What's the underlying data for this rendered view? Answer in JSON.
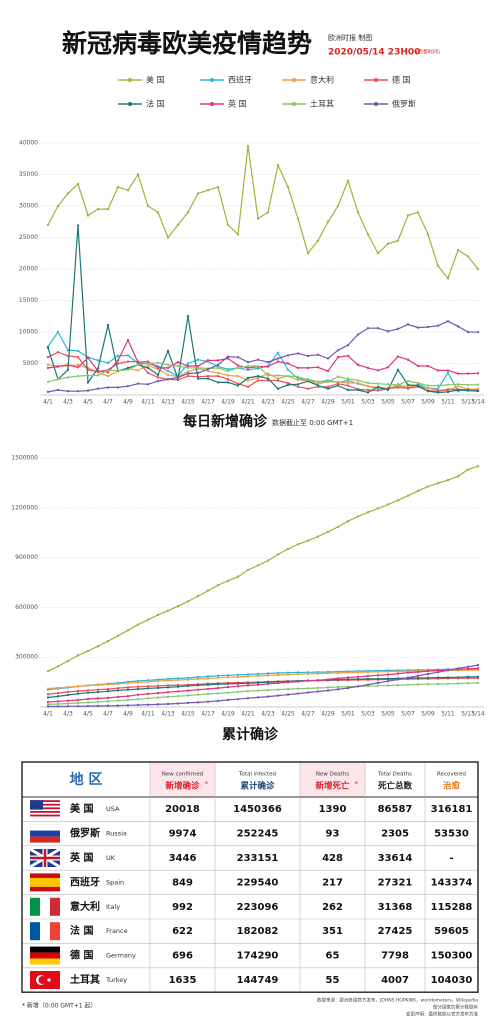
{
  "header": {
    "title": "新冠病毒欧美疫情趋势",
    "publisher": "欧洲时报 制图",
    "date": "2020/05/14 23H00",
    "timezone": "(巴黎时间)"
  },
  "chart_data": [
    {
      "type": "line",
      "title": "每日新增确诊",
      "subtitle": "数据截止至 0:00 GMT+1",
      "grid": true,
      "categories": [
        "4/1",
        null,
        "4/3",
        null,
        "4/5",
        null,
        "4/7",
        null,
        "4/9",
        null,
        "4/11",
        null,
        "4/13",
        null,
        "4/15",
        null,
        "4/17",
        null,
        "4/19",
        null,
        "4/21",
        null,
        "4/23",
        null,
        "4/25",
        null,
        "4/27",
        null,
        "4/29",
        null,
        "5/01",
        null,
        "5/03",
        null,
        "5/05",
        null,
        "5/07",
        null,
        "5/09",
        null,
        "5/11",
        null,
        "5/13",
        "5/14"
      ],
      "ylim": [
        0,
        40000
      ],
      "yticks": [
        5000,
        10000,
        15000,
        20000,
        25000,
        30000,
        35000,
        40000
      ],
      "series": [
        {
          "name": "美 国",
          "color": "#9db53a",
          "values": [
            27000,
            30000,
            32000,
            33500,
            28500,
            29500,
            29500,
            33000,
            32500,
            35000,
            30000,
            29000,
            25000,
            27000,
            29000,
            32000,
            32500,
            33000,
            27000,
            25500,
            39500,
            28000,
            29000,
            36500,
            33000,
            28000,
            22500,
            24500,
            27500,
            30000,
            34000,
            29000,
            25500,
            22500,
            24000,
            24500,
            28500,
            29000,
            25500,
            20500,
            18500,
            23000,
            22000,
            20018
          ]
        },
        {
          "name": "西班牙",
          "color": "#2bb6d8",
          "values": [
            7700,
            10000,
            7100,
            7000,
            6000,
            5500,
            5100,
            6200,
            6300,
            5000,
            5000,
            4600,
            3800,
            3000,
            5000,
            5600,
            5300,
            4500,
            4100,
            4300,
            4000,
            4200,
            4600,
            6700,
            4000,
            2600,
            2500,
            2100,
            2300,
            2000,
            2300,
            1800,
            1400,
            1000,
            900,
            1700,
            1000,
            1700,
            1100,
            1000,
            3500,
            600,
            1000,
            849
          ]
        },
        {
          "name": "意大利",
          "color": "#f0a043",
          "values": [
            4800,
            4600,
            4600,
            4800,
            4300,
            3600,
            3000,
            3800,
            4200,
            3900,
            4700,
            4100,
            3200,
            2900,
            3700,
            4200,
            3800,
            3500,
            3100,
            3000,
            2300,
            2700,
            3400,
            2600,
            3000,
            2400,
            2300,
            1800,
            2100,
            2100,
            1900,
            1900,
            1400,
            1200,
            1100,
            1400,
            1400,
            1300,
            1100,
            800,
            700,
            1400,
            900,
            992
          ]
        },
        {
          "name": "德 国",
          "color": "#e8505a",
          "values": [
            6000,
            6800,
            6200,
            6000,
            4000,
            3700,
            4000,
            5000,
            5300,
            5300,
            3500,
            2800,
            2500,
            2400,
            3000,
            2900,
            3000,
            3000,
            2500,
            1800,
            1300,
            2300,
            2300,
            2300,
            1900,
            1300,
            1000,
            1300,
            1300,
            1800,
            1500,
            900,
            800,
            700,
            1000,
            1200,
            1100,
            1300,
            700,
            600,
            900,
            900,
            800,
            696
          ]
        },
        {
          "name": "法 国",
          "color": "#1d7777",
          "values": [
            7500,
            2500,
            4000,
            26900,
            2000,
            4200,
            11100,
            3800,
            4300,
            4800,
            4300,
            3200,
            7000,
            2600,
            12500,
            2600,
            2600,
            2000,
            2000,
            1500,
            2700,
            3000,
            2600,
            1000,
            1600,
            1700,
            2200,
            1500,
            1000,
            1500,
            800,
            800,
            400,
            1300,
            800,
            4000,
            1600,
            1500,
            600,
            400,
            500,
            800,
            700,
            622
          ]
        },
        {
          "name": "英 国",
          "color": "#e0357a",
          "values": [
            4300,
            4500,
            4800,
            4400,
            5900,
            3800,
            3600,
            5500,
            8700,
            5200,
            5300,
            4300,
            4300,
            5200,
            4600,
            4600,
            5500,
            5500,
            5800,
            4700,
            4300,
            4500,
            4500,
            5300,
            5000,
            4300,
            4300,
            4400,
            3800,
            6000,
            6200,
            4800,
            4300,
            3900,
            4400,
            6100,
            5600,
            4600,
            4600,
            3900,
            3900,
            3400,
            3400,
            3446
          ]
        },
        {
          "name": "土耳其",
          "color": "#86c96c",
          "values": [
            2100,
            2500,
            2800,
            3000,
            3100,
            3100,
            3900,
            3900,
            4000,
            4800,
            5000,
            5100,
            4800,
            4600,
            4300,
            4300,
            4200,
            4300,
            3800,
            4300,
            4600,
            4600,
            3100,
            3100,
            3000,
            2900,
            2400,
            2100,
            2100,
            2900,
            2600,
            2300,
            1900,
            1800,
            1700,
            1600,
            2200,
            1900,
            1500,
            1500,
            1600,
            1700,
            1600,
            1635
          ]
        },
        {
          "name": "俄罗斯",
          "color": "#7856b3",
          "values": [
            500,
            800,
            600,
            600,
            700,
            1000,
            1200,
            1200,
            1400,
            1800,
            1700,
            2200,
            2500,
            2800,
            3400,
            3500,
            4100,
            4800,
            6100,
            6000,
            5200,
            5600,
            5200,
            5800,
            6300,
            6600,
            6200,
            6400,
            5800,
            7100,
            7900,
            9600,
            10600,
            10600,
            10100,
            10500,
            11200,
            10700,
            10800,
            11000,
            11700,
            10900,
            10000,
            9974
          ]
        }
      ]
    },
    {
      "type": "line",
      "title": "累计确诊",
      "grid": true,
      "categories": [
        "4/1",
        null,
        "4/3",
        null,
        "4/5",
        null,
        "4/7",
        null,
        "4/9",
        null,
        "4/11",
        null,
        "4/13",
        null,
        "4/15",
        null,
        "4/17",
        null,
        "4/19",
        null,
        "4/21",
        null,
        "4/23",
        null,
        "4/25",
        null,
        "4/27",
        null,
        "4/29",
        null,
        "5/01",
        null,
        "5/03",
        null,
        "5/05",
        null,
        "5/07",
        null,
        "5/09",
        null,
        "5/11",
        null,
        "5/13",
        "5/14"
      ],
      "ylim": [
        0,
        1500000
      ],
      "yticks": [
        300000,
        600000,
        900000,
        1200000,
        1500000
      ],
      "series": [
        {
          "color": "#9db53a",
          "values": [
            215000,
            245000,
            277000,
            311000,
            337000,
            366000,
            397000,
            429000,
            462000,
            496000,
            526000,
            555000,
            580000,
            607000,
            636000,
            668000,
            701000,
            734000,
            760000,
            785000,
            825000,
            853000,
            882000,
            919000,
            952000,
            980000,
            1002000,
            1027000,
            1055000,
            1085000,
            1119000,
            1148000,
            1173000,
            1196000,
            1220000,
            1245000,
            1273000,
            1302000,
            1328000,
            1348000,
            1367000,
            1390000,
            1430000,
            1450366
          ]
        },
        {
          "color": "#2bb6d8",
          "values": [
            104000,
            110000,
            117000,
            124000,
            130000,
            135000,
            140000,
            146000,
            152000,
            157000,
            161000,
            165000,
            169000,
            172000,
            175000,
            180000,
            184000,
            188000,
            191000,
            194000,
            196000,
            199000,
            202000,
            205000,
            207000,
            208000,
            209000,
            210000,
            211000,
            213000,
            215000,
            216000,
            218000,
            219000,
            220000,
            221000,
            222000,
            223000,
            224000,
            225000,
            227000,
            228000,
            229000,
            229540
          ]
        },
        {
          "color": "#f0a043",
          "values": [
            110574,
            115242,
            119827,
            124632,
            128948,
            132547,
            135586,
            139422,
            143626,
            147577,
            152271,
            156363,
            159516,
            162488,
            165155,
            168941,
            172434,
            175925,
            178972,
            181228,
            183957,
            187327,
            189973,
            192994,
            195351,
            197675,
            199414,
            201505,
            203591,
            205463,
            207428,
            209328,
            210717,
            211938,
            213013,
            214457,
            215858,
            217185,
            218268,
            219070,
            219814,
            221216,
            222104,
            223096
          ]
        },
        {
          "color": "#e8505a",
          "values": [
            77000,
            84000,
            91000,
            96000,
            100000,
            104000,
            108000,
            113000,
            118000,
            122000,
            125000,
            127000,
            130000,
            132000,
            134000,
            137000,
            141000,
            143000,
            145000,
            147000,
            148000,
            150000,
            153000,
            154000,
            156000,
            157000,
            158000,
            159000,
            160000,
            161000,
            162000,
            163000,
            164000,
            165000,
            166000,
            167000,
            168000,
            169000,
            170000,
            171000,
            172000,
            173000,
            173600,
            174290
          ]
        },
        {
          "color": "#1d7777",
          "values": [
            57000,
            64000,
            72000,
            80000,
            86000,
            90000,
            95000,
            100000,
            104000,
            108000,
            112000,
            115000,
            118000,
            122000,
            127000,
            131000,
            134000,
            137000,
            139000,
            141000,
            143000,
            146000,
            149000,
            152000,
            155000,
            157000,
            159000,
            161000,
            163000,
            165000,
            167000,
            168000,
            169000,
            170000,
            171000,
            172000,
            174000,
            175000,
            176000,
            177000,
            178000,
            179000,
            181460,
            182082
          ]
        },
        {
          "color": "#e0357a",
          "values": [
            30000,
            34000,
            38000,
            42000,
            48000,
            52000,
            55000,
            61000,
            65000,
            74000,
            79000,
            84000,
            89000,
            94000,
            99000,
            104000,
            109000,
            114000,
            120000,
            125000,
            130000,
            134000,
            139000,
            144000,
            149000,
            153000,
            158000,
            161000,
            166000,
            172000,
            178000,
            182000,
            187000,
            191000,
            195000,
            201000,
            207000,
            211000,
            216000,
            220000,
            224000,
            227000,
            229700,
            233151
          ]
        },
        {
          "color": "#86c96c",
          "values": [
            15679,
            18135,
            20921,
            23934,
            27069,
            30217,
            34109,
            38226,
            42282,
            47029,
            52167,
            56956,
            61049,
            65111,
            69392,
            74193,
            78546,
            82329,
            86306,
            90980,
            95591,
            98674,
            101790,
            104912,
            107773,
            110130,
            112261,
            114653,
            117589,
            120204,
            122392,
            124375,
            126045,
            127659,
            129491,
            131744,
            133721,
            135569,
            137115,
            138657,
            139771,
            141475,
            143114,
            144749
          ]
        },
        {
          "color": "#7856b3",
          "values": [
            2777,
            3548,
            4149,
            4731,
            5389,
            6343,
            7497,
            8672,
            10131,
            11917,
            13584,
            15770,
            18328,
            21102,
            24490,
            27938,
            32008,
            36793,
            42853,
            47121,
            52763,
            57999,
            62773,
            68622,
            74588,
            80949,
            87147,
            93558,
            99399,
            106498,
            114431,
            124054,
            134687,
            145268,
            155370,
            165929,
            177160,
            187859,
            198676,
            209688,
            221344,
            232243,
            242271,
            252245
          ]
        }
      ]
    }
  ],
  "table": {
    "region_header": "地 区",
    "columns": [
      {
        "en": "New confirmed",
        "zh": "新增确诊",
        "mark": "*"
      },
      {
        "en": "Total infected",
        "zh": "累计确诊"
      },
      {
        "en": "New Deaths",
        "zh": "新增死亡",
        "mark": "*"
      },
      {
        "en": "Total Deaths",
        "zh": "死亡总数"
      },
      {
        "en": "Recovered",
        "zh": "治愈"
      }
    ],
    "rows": [
      {
        "zh": "美 国",
        "en": "USA",
        "values": [
          20018,
          1450366,
          1390,
          86587,
          316181
        ]
      },
      {
        "zh": "俄罗斯",
        "en": "Russia",
        "values": [
          9974,
          252245,
          93,
          2305,
          53530
        ]
      },
      {
        "zh": "英 国",
        "en": "UK",
        "values": [
          3446,
          233151,
          428,
          33614,
          "-"
        ]
      },
      {
        "zh": "西班牙",
        "en": "Spain",
        "values": [
          849,
          229540,
          217,
          27321,
          143374
        ]
      },
      {
        "zh": "意大利",
        "en": "Italy",
        "values": [
          992,
          223096,
          262,
          31368,
          115288
        ]
      },
      {
        "zh": "法 国",
        "en": "France",
        "values": [
          622,
          182082,
          351,
          27425,
          59605
        ]
      },
      {
        "zh": "德 国",
        "en": "Germany",
        "values": [
          696,
          174290,
          65,
          7798,
          150300
        ]
      },
      {
        "zh": "土耳其",
        "en": "Turkey",
        "values": [
          1635,
          144749,
          55,
          4007,
          104030
        ]
      }
    ]
  },
  "footer": {
    "note": "* 新增（0:00 GMT+1 起）",
    "source": "数据来源：欧洲各国官方发布，JOHNS HOPKINS，worldometers，Wikipedia",
    "remark1": "部分国家的累计数据有",
    "remark2": "变更声明：最终数据以官方发布为准"
  }
}
